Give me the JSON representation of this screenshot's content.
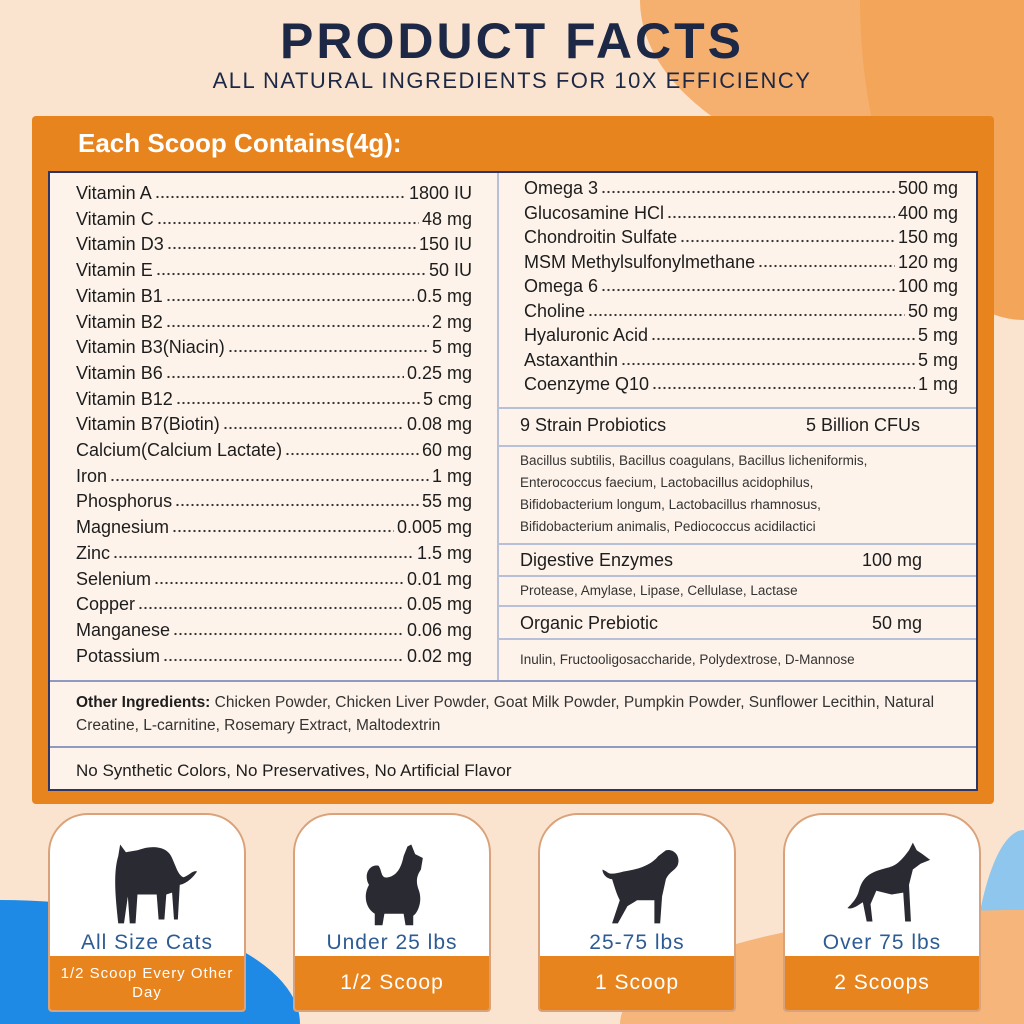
{
  "header": {
    "title": "PRODUCT FACTS",
    "subtitle": "ALL NATURAL INGREDIENTS FOR 10X EFFICIENCY"
  },
  "colors": {
    "orange": "#e8841e",
    "navy": "#1c2845",
    "blue": "#1e8ae6",
    "peach": "#fbe4cf"
  },
  "panel": {
    "heading": "Each Scoop Contains(4g):"
  },
  "left_items": [
    {
      "name": "Vitamin A",
      "value": "1800 IU"
    },
    {
      "name": "Vitamin C",
      "value": "48 mg"
    },
    {
      "name": "Vitamin D3",
      "value": "150 IU"
    },
    {
      "name": "Vitamin E",
      "value": "50 IU"
    },
    {
      "name": "Vitamin B1",
      "value": "0.5 mg"
    },
    {
      "name": "Vitamin B2",
      "value": "2 mg"
    },
    {
      "name": "Vitamin B3(Niacin)",
      "value": "5 mg"
    },
    {
      "name": "Vitamin B6",
      "value": "0.25 mg"
    },
    {
      "name": "Vitamin B12",
      "value": "5 cmg"
    },
    {
      "name": "Vitamin B7(Biotin)",
      "value": "0.08 mg"
    },
    {
      "name": "Calcium(Calcium Lactate)",
      "value": "60 mg"
    },
    {
      "name": "Iron",
      "value": "1 mg"
    },
    {
      "name": "Phosphorus",
      "value": "55 mg"
    },
    {
      "name": "Magnesium",
      "value": "0.005 mg"
    },
    {
      "name": "Zinc",
      "value": "1.5 mg"
    },
    {
      "name": "Selenium",
      "value": "0.01 mg"
    },
    {
      "name": "Copper",
      "value": "0.05 mg"
    },
    {
      "name": "Manganese",
      "value": "0.06 mg"
    },
    {
      "name": "Potassium",
      "value": "0.02 mg"
    }
  ],
  "right_items": [
    {
      "name": "Omega 3",
      "value": "500 mg"
    },
    {
      "name": "Glucosamine HCl",
      "value": "400 mg"
    },
    {
      "name": "Chondroitin Sulfate",
      "value": "150 mg"
    },
    {
      "name": "MSM Methylsulfonylmethane",
      "value": "120 mg"
    },
    {
      "name": "Omega 6",
      "value": "100 mg"
    },
    {
      "name": "Choline",
      "value": "50 mg"
    },
    {
      "name": "Hyaluronic Acid",
      "value": "5 mg"
    },
    {
      "name": "Astaxanthin",
      "value": "5 mg"
    },
    {
      "name": "Coenzyme Q10",
      "value": "1 mg"
    }
  ],
  "probiotics": {
    "title": "9 Strain Probiotics",
    "value": "5 Billion CFUs",
    "lines": [
      "Bacillus subtilis, Bacillus coagulans, Bacillus licheniformis,",
      "Enterococcus faecium, Lactobacillus acidophilus,",
      "Bifidobacterium longum, Lactobacillus rhamnosus,",
      "Bifidobacterium animalis, Pediococcus acidilactici"
    ]
  },
  "enzymes": {
    "title": "Digestive Enzymes",
    "value": "100 mg",
    "list": "Protease, Amylase, Lipase, Cellulase, Lactase"
  },
  "prebiotic": {
    "title": "Organic Prebiotic",
    "value": "50 mg",
    "list": "Inulin, Fructooligosaccharide, Polydextrose, D-Mannose"
  },
  "other": {
    "label": "Other Ingredients:",
    "text": " Chicken Powder, Chicken Liver Powder, Goat Milk Powder, Pumpkin Powder, Sunflower Lecithin, Natural Creatine, L-carnitine, Rosemary Extract, Maltodextrin"
  },
  "free_from": "No Synthetic Colors, No Preservatives, No Artificial Flavor",
  "dosage": [
    {
      "icon": "cat-icon",
      "label": "All Size Cats",
      "dose": "1/2 Scoop Every Other Day"
    },
    {
      "icon": "small-dog-icon",
      "label": "Under 25 lbs",
      "dose": "1/2 Scoop"
    },
    {
      "icon": "medium-dog-icon",
      "label": "25-75 lbs",
      "dose": "1 Scoop"
    },
    {
      "icon": "large-dog-icon",
      "label": "Over 75 lbs",
      "dose": "2 Scoops"
    }
  ]
}
